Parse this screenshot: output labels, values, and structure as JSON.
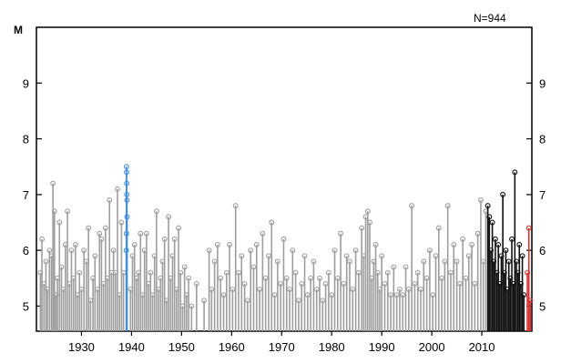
{
  "chart_data": {
    "type": "scatter",
    "subtype": "stem",
    "title": "",
    "ylabel": "M",
    "annotation": "N=944",
    "xlim": [
      1921,
      2020
    ],
    "ylim": [
      4.55,
      10.0
    ],
    "x_ticks": [
      1930,
      1940,
      1950,
      1960,
      1970,
      1980,
      1990,
      2000,
      2010
    ],
    "x_tick_labels": [
      "1930",
      "1940",
      "1950",
      "1960",
      "1970",
      "1980",
      "1990",
      "2000",
      "2010"
    ],
    "y_ticks": [
      5,
      6,
      7,
      8,
      9
    ],
    "y_tick_labels": [
      "5",
      "6",
      "7",
      "8",
      "9"
    ],
    "grid": false,
    "legend": "none",
    "colors": {
      "historical": "#9e9e9e",
      "highlight_1939": "#3f8fe6",
      "recent": "#111111",
      "latest": "#e03030",
      "axis": "#000000"
    },
    "series": [
      {
        "color_key": "historical",
        "points": [
          [
            1921.8,
            5.6
          ],
          [
            1922.1,
            6.2
          ],
          [
            1922.5,
            5.4
          ],
          [
            1922.9,
            5.8
          ],
          [
            1923.2,
            5.3
          ],
          [
            1923.6,
            6.0
          ],
          [
            1924.0,
            5.9
          ],
          [
            1924.3,
            7.2
          ],
          [
            1924.6,
            6.7
          ],
          [
            1924.9,
            5.2
          ],
          [
            1925.2,
            5.5
          ],
          [
            1925.6,
            6.5
          ],
          [
            1926.0,
            5.7
          ],
          [
            1926.4,
            5.3
          ],
          [
            1926.8,
            6.1
          ],
          [
            1927.2,
            6.7
          ],
          [
            1927.6,
            5.4
          ],
          [
            1928.0,
            6.0
          ],
          [
            1928.4,
            5.5
          ],
          [
            1928.8,
            6.1
          ],
          [
            1929.2,
            5.2
          ],
          [
            1929.6,
            5.6
          ],
          [
            1930.0,
            5.3
          ],
          [
            1930.5,
            6.0
          ],
          [
            1931.0,
            5.8
          ],
          [
            1931.4,
            6.4
          ],
          [
            1931.8,
            5.1
          ],
          [
            1932.3,
            5.5
          ],
          [
            1932.7,
            5.9
          ],
          [
            1933.2,
            5.3
          ],
          [
            1933.6,
            6.3
          ],
          [
            1934.0,
            6.2
          ],
          [
            1934.4,
            5.4
          ],
          [
            1934.8,
            6.4
          ],
          [
            1935.2,
            5.5
          ],
          [
            1935.6,
            6.9
          ],
          [
            1936.0,
            5.6
          ],
          [
            1936.4,
            6.0
          ],
          [
            1936.8,
            5.6
          ],
          [
            1937.2,
            7.1
          ],
          [
            1937.6,
            5.2
          ],
          [
            1938.0,
            6.5
          ],
          [
            1938.4,
            5.6
          ],
          [
            1939.8,
            5.3
          ],
          [
            1940.2,
            5.9
          ],
          [
            1940.6,
            6.1
          ],
          [
            1941.0,
            5.5
          ],
          [
            1941.4,
            5.6
          ],
          [
            1941.8,
            6.3
          ],
          [
            1942.2,
            5.2
          ],
          [
            1942.6,
            6.0
          ],
          [
            1943.0,
            6.3
          ],
          [
            1943.4,
            5.4
          ],
          [
            1943.8,
            5.6
          ],
          [
            1944.2,
            5.2
          ],
          [
            1944.6,
            5.9
          ],
          [
            1945.0,
            6.7
          ],
          [
            1945.4,
            5.3
          ],
          [
            1945.8,
            5.5
          ],
          [
            1946.2,
            5.8
          ],
          [
            1946.6,
            6.2
          ],
          [
            1947.0,
            5.1
          ],
          [
            1947.4,
            6.6
          ],
          [
            1947.8,
            5.5
          ],
          [
            1948.2,
            5.9
          ],
          [
            1948.6,
            6.2
          ],
          [
            1949.0,
            5.3
          ],
          [
            1949.4,
            6.4
          ],
          [
            1949.8,
            5.6
          ],
          [
            1950.2,
            5.0
          ],
          [
            1950.6,
            5.7
          ],
          [
            1951.0,
            5.2
          ],
          [
            1951.4,
            5.5
          ],
          [
            1952.0,
            5.0
          ],
          [
            1953.0,
            5.4
          ],
          [
            1954.5,
            5.1
          ],
          [
            1955.5,
            6.0
          ],
          [
            1956.0,
            5.3
          ],
          [
            1956.6,
            5.8
          ],
          [
            1957.2,
            6.1
          ],
          [
            1957.8,
            5.5
          ],
          [
            1958.4,
            5.2
          ],
          [
            1959.0,
            5.6
          ],
          [
            1959.6,
            6.1
          ],
          [
            1960.2,
            5.3
          ],
          [
            1960.8,
            6.8
          ],
          [
            1961.4,
            5.6
          ],
          [
            1962.0,
            5.9
          ],
          [
            1962.6,
            5.4
          ],
          [
            1963.2,
            5.1
          ],
          [
            1963.8,
            6.0
          ],
          [
            1964.4,
            5.7
          ],
          [
            1965.0,
            6.1
          ],
          [
            1965.6,
            5.3
          ],
          [
            1966.2,
            6.3
          ],
          [
            1966.8,
            5.5
          ],
          [
            1967.4,
            5.9
          ],
          [
            1968.0,
            6.5
          ],
          [
            1968.6,
            5.2
          ],
          [
            1969.2,
            5.8
          ],
          [
            1969.8,
            5.4
          ],
          [
            1970.4,
            6.2
          ],
          [
            1971.0,
            5.5
          ],
          [
            1971.6,
            5.3
          ],
          [
            1972.2,
            6.0
          ],
          [
            1972.8,
            5.6
          ],
          [
            1973.4,
            5.1
          ],
          [
            1974.0,
            5.4
          ],
          [
            1974.6,
            5.9
          ],
          [
            1975.2,
            5.2
          ],
          [
            1975.8,
            5.5
          ],
          [
            1976.4,
            5.8
          ],
          [
            1977.0,
            5.3
          ],
          [
            1977.6,
            5.5
          ],
          [
            1978.2,
            5.1
          ],
          [
            1978.8,
            5.4
          ],
          [
            1979.4,
            5.6
          ],
          [
            1980.0,
            5.2
          ],
          [
            1980.6,
            6.0
          ],
          [
            1981.2,
            5.5
          ],
          [
            1981.8,
            6.3
          ],
          [
            1982.4,
            5.4
          ],
          [
            1983.0,
            5.9
          ],
          [
            1983.6,
            5.8
          ],
          [
            1984.2,
            5.3
          ],
          [
            1984.8,
            6.0
          ],
          [
            1985.4,
            5.6
          ],
          [
            1986.0,
            6.4
          ],
          [
            1986.4,
            5.9
          ],
          [
            1986.8,
            6.6
          ],
          [
            1987.2,
            6.7
          ],
          [
            1987.6,
            6.5
          ],
          [
            1988.0,
            5.5
          ],
          [
            1988.4,
            5.8
          ],
          [
            1988.8,
            6.1
          ],
          [
            1989.2,
            5.6
          ],
          [
            1989.6,
            5.3
          ],
          [
            1990.0,
            5.9
          ],
          [
            1990.6,
            5.4
          ],
          [
            1991.2,
            5.6
          ],
          [
            1991.8,
            5.2
          ],
          [
            1992.4,
            5.7
          ],
          [
            1993.0,
            5.2
          ],
          [
            1993.6,
            5.3
          ],
          [
            1994.2,
            5.2
          ],
          [
            1994.8,
            5.7
          ],
          [
            1995.4,
            5.3
          ],
          [
            1996.0,
            6.8
          ],
          [
            1996.6,
            5.4
          ],
          [
            1997.2,
            5.6
          ],
          [
            1997.8,
            5.3
          ],
          [
            1998.4,
            5.8
          ],
          [
            1999.0,
            5.5
          ],
          [
            1999.6,
            6.0
          ],
          [
            2000.2,
            5.2
          ],
          [
            2000.8,
            5.9
          ],
          [
            2001.4,
            6.4
          ],
          [
            2002.0,
            5.5
          ],
          [
            2002.6,
            5.8
          ],
          [
            2003.2,
            6.8
          ],
          [
            2003.8,
            5.6
          ],
          [
            2004.4,
            6.1
          ],
          [
            2005.0,
            5.8
          ],
          [
            2005.6,
            5.4
          ],
          [
            2006.2,
            6.2
          ],
          [
            2006.8,
            5.5
          ],
          [
            2007.4,
            5.9
          ],
          [
            2008.0,
            6.1
          ],
          [
            2008.6,
            5.4
          ],
          [
            2009.2,
            6.3
          ],
          [
            2009.8,
            6.9
          ],
          [
            2010.3,
            5.8
          ],
          [
            2010.8,
            6.7
          ]
        ]
      },
      {
        "color_key": "highlight_1939",
        "points": [
          [
            1938.95,
            6.0
          ],
          [
            1938.98,
            6.3
          ],
          [
            1939.0,
            7.5
          ],
          [
            1939.02,
            7.4
          ],
          [
            1939.04,
            7.2
          ],
          [
            1939.06,
            7.0
          ],
          [
            1939.08,
            6.9
          ],
          [
            1939.1,
            6.6
          ]
        ]
      },
      {
        "color_key": "recent",
        "points": [
          [
            2011.2,
            6.8
          ],
          [
            2011.5,
            6.6
          ],
          [
            2011.8,
            6.0
          ],
          [
            2012.1,
            6.5
          ],
          [
            2012.4,
            5.8
          ],
          [
            2012.7,
            6.2
          ],
          [
            2013.0,
            5.6
          ],
          [
            2013.3,
            6.1
          ],
          [
            2013.6,
            5.4
          ],
          [
            2013.9,
            5.9
          ],
          [
            2014.2,
            7.0
          ],
          [
            2014.5,
            5.6
          ],
          [
            2014.8,
            6.0
          ],
          [
            2015.1,
            5.3
          ],
          [
            2015.4,
            5.8
          ],
          [
            2015.7,
            5.5
          ],
          [
            2016.0,
            6.2
          ],
          [
            2016.3,
            5.4
          ],
          [
            2016.6,
            7.4
          ],
          [
            2016.9,
            5.8
          ],
          [
            2017.2,
            5.6
          ],
          [
            2017.5,
            6.1
          ],
          [
            2017.8,
            5.4
          ],
          [
            2018.1,
            5.9
          ],
          [
            2018.4,
            5.2
          ]
        ]
      },
      {
        "color_key": "latest",
        "points": [
          [
            2019.1,
            5.6
          ],
          [
            2019.4,
            6.4
          ],
          [
            2019.7,
            5.1
          ]
        ]
      }
    ]
  }
}
